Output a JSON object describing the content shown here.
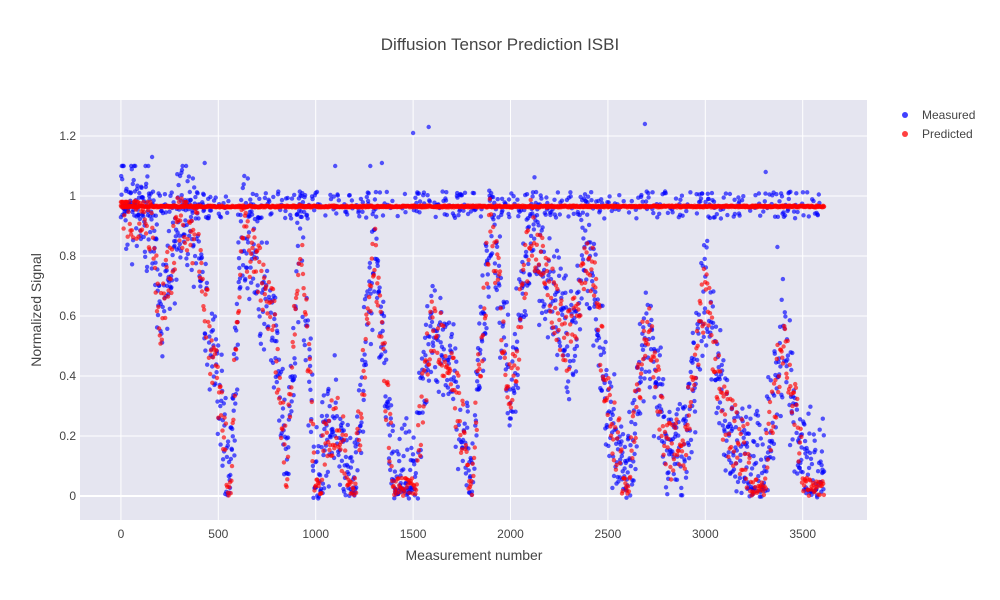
{
  "chart_data": {
    "type": "scatter",
    "title": "Diffusion Tensor Prediction ISBI",
    "xlabel": "Measurement number",
    "ylabel": "Normalized Signal",
    "xlim": [
      -210,
      3830
    ],
    "ylim": [
      -0.08,
      1.32
    ],
    "xticks": [
      0,
      500,
      1000,
      1500,
      2000,
      2500,
      3000,
      3500
    ],
    "yticks": [
      0,
      0.2,
      0.4,
      0.6,
      0.8,
      1,
      1.2
    ],
    "ytick_labels": [
      "0",
      "0.2",
      "0.4",
      "0.6",
      "0.8",
      "1",
      "1.2"
    ],
    "grid": true,
    "legend_position": "top-right",
    "plot_background": "#e5e5f0",
    "series": [
      {
        "name": "Measured",
        "color": "#0000ff",
        "description_points_x": [
          0,
          40,
          80,
          120,
          160,
          200,
          250,
          300,
          350,
          400,
          450,
          500,
          560,
          620,
          700,
          780,
          850,
          920,
          1000,
          1100,
          1200,
          1300,
          1400,
          1500,
          1600,
          1700,
          1800,
          1900,
          2000,
          2100,
          2200,
          2300,
          2400,
          2500,
          2600,
          2700,
          2800,
          2900,
          3000,
          3100,
          3200,
          3300,
          3400,
          3500,
          3600
        ],
        "values": [
          1.0,
          0.97,
          0.96,
          0.95,
          0.92,
          0.6,
          0.75,
          0.95,
          0.9,
          0.85,
          0.55,
          0.35,
          0.05,
          0.9,
          0.75,
          0.6,
          0.08,
          0.9,
          0.05,
          0.25,
          0.03,
          0.85,
          0.05,
          0.04,
          0.6,
          0.4,
          0.07,
          0.95,
          0.3,
          0.9,
          0.7,
          0.5,
          0.85,
          0.3,
          0.05,
          0.6,
          0.15,
          0.2,
          0.7,
          0.25,
          0.15,
          0.05,
          0.55,
          0.1,
          0.1
        ],
        "outliers_x": [
          160,
          430,
          1100,
          1280,
          1340,
          1500,
          1580,
          2690,
          3310,
          3370
        ],
        "outliers_y": [
          1.13,
          1.11,
          1.1,
          1.1,
          1.11,
          1.21,
          1.23,
          1.24,
          1.08,
          0.83
        ]
      },
      {
        "name": "Predicted",
        "color": "#ff0000",
        "baseline_value": 0.965,
        "baseline_x_range": [
          0,
          3610
        ]
      }
    ]
  }
}
